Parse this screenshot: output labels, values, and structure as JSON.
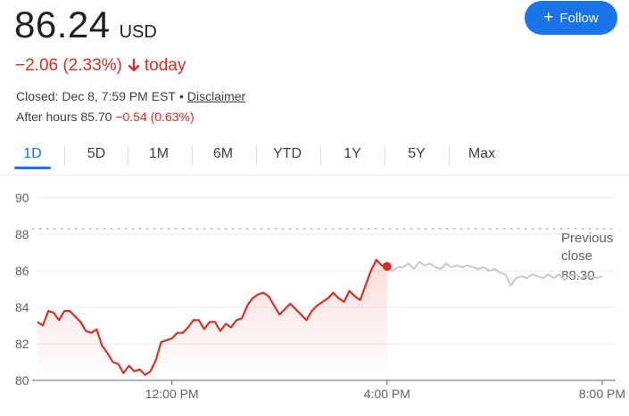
{
  "quote": {
    "price": "86.24",
    "currency": "USD",
    "change_text": "−2.06 (2.33%)",
    "change_suffix": "today",
    "closed_text": "Closed: Dec 8, 7:59 PM EST",
    "separator": "•",
    "disclaimer": "Disclaimer",
    "after_hours_label": "After hours 85.70",
    "after_hours_change": "−0.54 (0.63%)"
  },
  "follow_button": {
    "label": "Follow",
    "icon": "plus-icon"
  },
  "tabs": [
    "1D",
    "5D",
    "1M",
    "6M",
    "YTD",
    "1Y",
    "5Y",
    "Max"
  ],
  "active_tab": "1D",
  "colors": {
    "down": "#d93025",
    "accent": "#1a73e8",
    "after_hours_line": "#c8c8c8",
    "grid": "#e8eaed"
  },
  "chart_data": {
    "type": "line",
    "ylim": [
      80,
      90
    ],
    "yticks": [
      80,
      82,
      84,
      86,
      88,
      90
    ],
    "xlim_hours": [
      9.5,
      20.25
    ],
    "xticks": [
      {
        "hour": 12,
        "label": "12:00 PM"
      },
      {
        "hour": 16,
        "label": "4:00 PM"
      },
      {
        "hour": 20,
        "label": "8:00 PM"
      }
    ],
    "previous_close": {
      "value": 88.3,
      "label_lines": [
        "Previous",
        "close"
      ],
      "value_label": "88.30"
    },
    "series": [
      {
        "session": "regular",
        "x": [
          9.5,
          9.6,
          9.7,
          9.8,
          9.9,
          10.0,
          10.1,
          10.2,
          10.3,
          10.4,
          10.5,
          10.6,
          10.7,
          10.8,
          10.9,
          11.0,
          11.1,
          11.2,
          11.3,
          11.4,
          11.5,
          11.6,
          11.7,
          11.8,
          11.9,
          12.0,
          12.1,
          12.2,
          12.3,
          12.4,
          12.5,
          12.6,
          12.7,
          12.8,
          12.9,
          13.0,
          13.1,
          13.2,
          13.3,
          13.4,
          13.5,
          13.6,
          13.7,
          13.8,
          13.9,
          14.0,
          14.1,
          14.2,
          14.3,
          14.4,
          14.5,
          14.6,
          14.7,
          14.8,
          14.9,
          15.0,
          15.1,
          15.2,
          15.3,
          15.4,
          15.5,
          15.6,
          15.7,
          15.8,
          15.9,
          16.0
        ],
        "values": [
          83.2,
          83.0,
          83.8,
          83.7,
          83.3,
          83.8,
          83.8,
          83.5,
          83.2,
          82.7,
          82.6,
          82.8,
          81.9,
          81.5,
          81.0,
          80.9,
          80.4,
          80.8,
          80.5,
          80.6,
          80.3,
          80.5,
          81.1,
          82.1,
          82.2,
          82.3,
          82.6,
          82.6,
          82.9,
          83.3,
          83.3,
          82.8,
          83.2,
          83.2,
          82.7,
          83.1,
          82.9,
          83.3,
          83.4,
          84.1,
          84.5,
          84.7,
          84.8,
          84.6,
          84.1,
          83.6,
          83.9,
          84.2,
          83.9,
          83.6,
          83.3,
          83.8,
          84.1,
          84.3,
          84.5,
          84.8,
          84.5,
          84.3,
          84.9,
          84.6,
          84.4,
          85.2,
          86.0,
          86.6,
          86.3,
          86.24
        ]
      },
      {
        "session": "after_hours",
        "x": [
          16.0,
          16.1,
          16.2,
          16.3,
          16.4,
          16.5,
          16.6,
          16.7,
          16.8,
          16.9,
          17.0,
          17.1,
          17.2,
          17.3,
          17.4,
          17.5,
          17.6,
          17.7,
          17.8,
          17.9,
          18.0,
          18.1,
          18.2,
          18.3,
          18.4,
          18.5,
          18.6,
          18.7,
          18.8,
          18.9,
          19.0,
          19.1,
          19.2,
          19.3,
          19.4,
          19.5,
          19.6,
          19.7,
          19.8,
          19.9,
          20.0
        ],
        "values": [
          86.24,
          86.0,
          86.2,
          86.2,
          86.4,
          86.1,
          86.5,
          86.3,
          86.4,
          86.2,
          86.1,
          86.4,
          86.2,
          86.3,
          86.2,
          86.3,
          86.2,
          86.1,
          86.2,
          86.0,
          86.1,
          85.9,
          85.8,
          85.2,
          85.6,
          85.7,
          85.6,
          85.8,
          85.7,
          85.6,
          85.8,
          85.6,
          85.8,
          85.5,
          85.7,
          85.8,
          85.6,
          85.7,
          85.7,
          85.6,
          85.7
        ]
      }
    ]
  }
}
